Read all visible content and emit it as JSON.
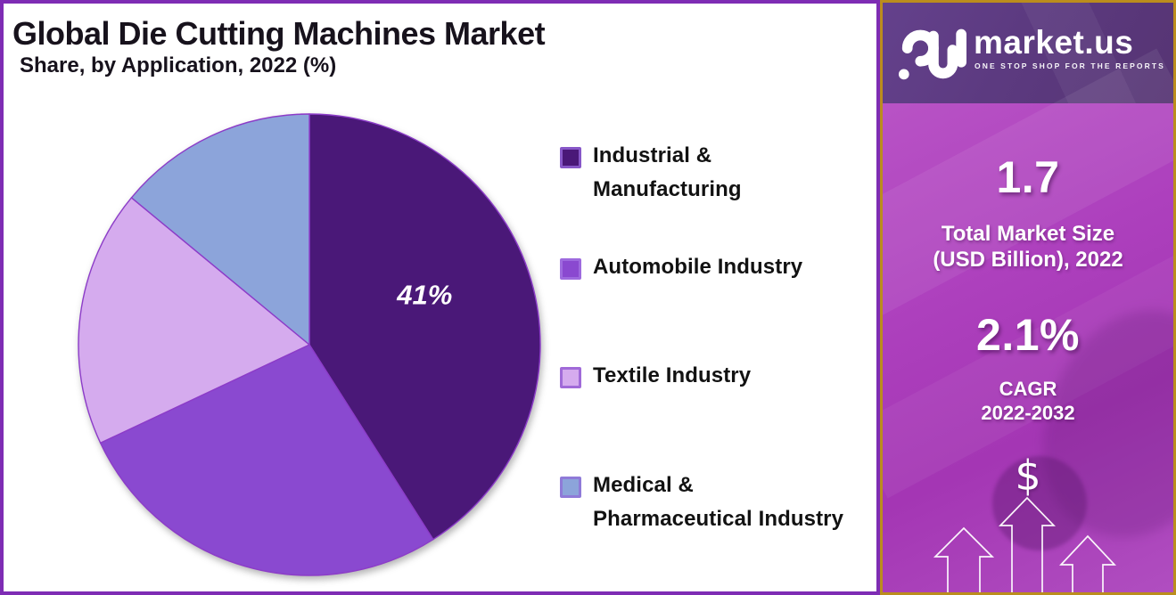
{
  "header": {
    "title": "Global Die Cutting Machines Market",
    "subtitle": "Share, by Application, 2022 (%)"
  },
  "chart_data": {
    "type": "pie",
    "title": "Global Die Cutting Machines Market Share, by Application, 2022 (%)",
    "unit": "percent",
    "categories": [
      "Industrial & Manufacturing",
      "Automobile Industry",
      "Textile Industry",
      "Medical & Pharmaceutical Industry"
    ],
    "values": [
      41,
      27,
      18,
      14
    ],
    "slice_labels": [
      "41%",
      "",
      "",
      ""
    ],
    "colors": [
      "#4a1878",
      "#8a49d0",
      "#d5abee",
      "#8ca4da"
    ],
    "slice_stroke": "#8c3cc8",
    "start_angle_deg": 0,
    "direction": "clockwise",
    "legend_position": "right",
    "grid": false
  },
  "legend": {
    "items": [
      {
        "label": "Industrial &\nManufacturing",
        "swatch_border": "#8757c8"
      },
      {
        "label": "Automobile Industry",
        "swatch_border": "#9e6ade"
      },
      {
        "label": "Textile Industry",
        "swatch_border": "#a06ad8"
      },
      {
        "label": "Medical &\nPharmaceutical Industry",
        "swatch_border": "#8f7ad8"
      }
    ]
  },
  "sidebar": {
    "brand": "market.us",
    "tagline": "ONE STOP SHOP FOR THE REPORTS",
    "stats": [
      {
        "value": "1.7",
        "caption": "Total Market Size\n(USD Billion), 2022"
      },
      {
        "value": "2.1%",
        "caption": "CAGR\n2022-2032"
      }
    ],
    "dollar_symbol": "$",
    "colors": {
      "header_bg": "#5c3a80",
      "gold_border": "#bb8d1d",
      "body_gradient_start": "#bd5bc9",
      "body_gradient_end": "#a436b4",
      "chart_frame_border": "#7e2cb4"
    }
  }
}
